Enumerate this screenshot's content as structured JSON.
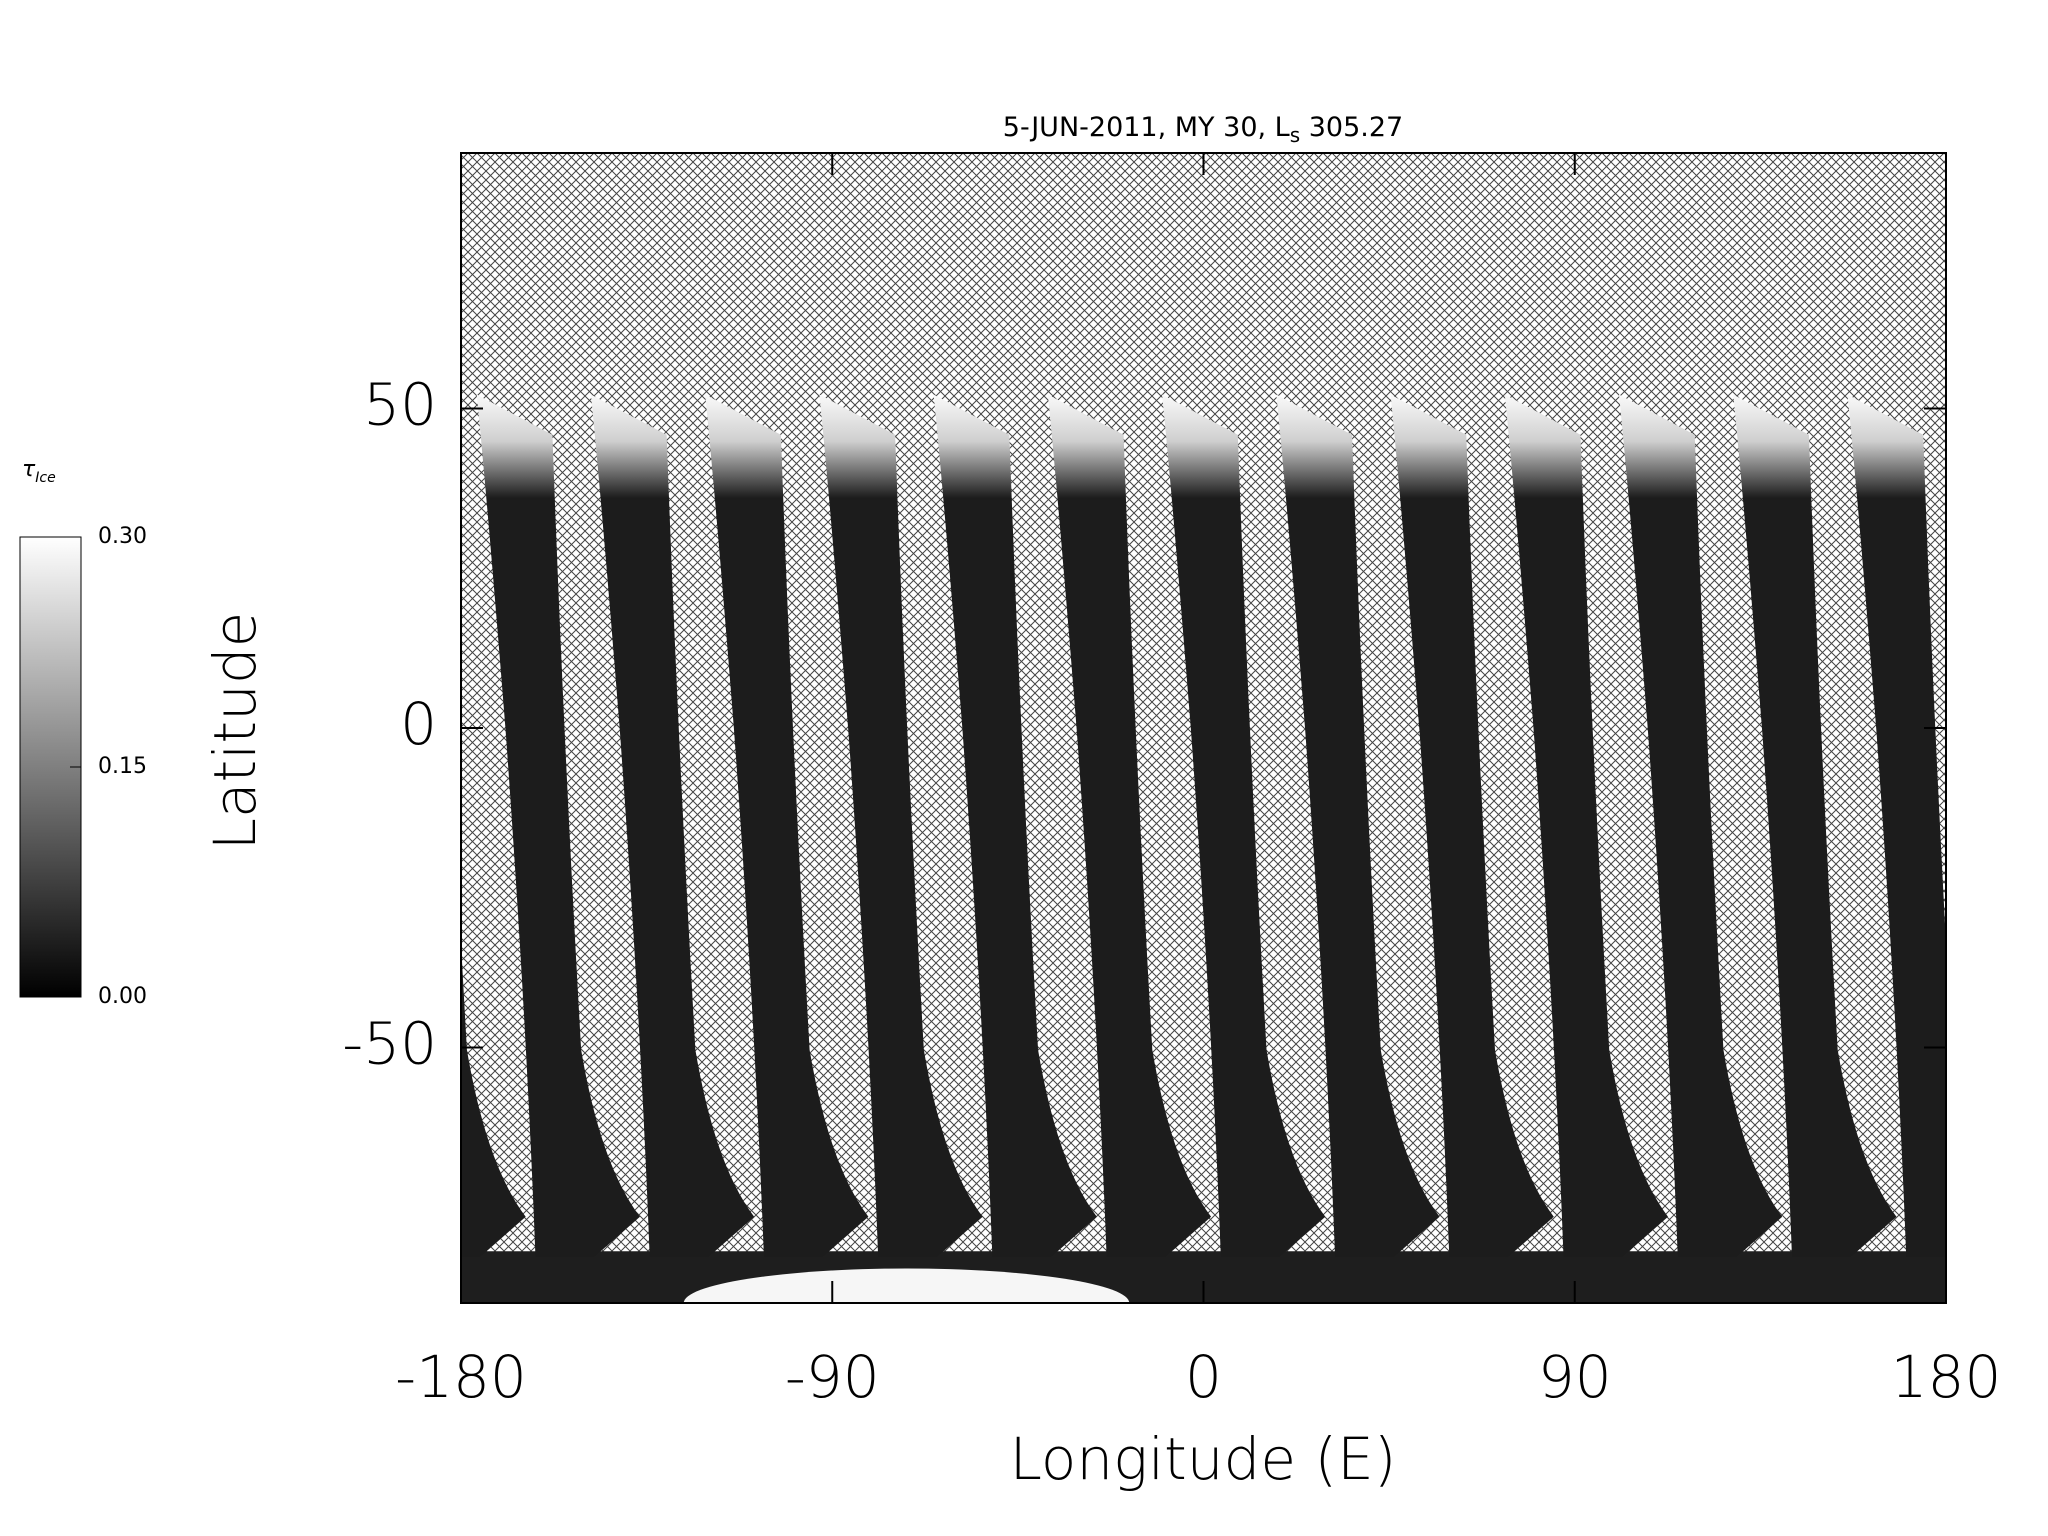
{
  "chart_data": {
    "type": "map",
    "title": "5-JUN-2011, MY 30,  L",
    "title_subscript": "s",
    "title_suffix": " 305.27",
    "x_label": "Longitude (E)",
    "y_label": "Latitude",
    "xlim": [
      -180,
      180
    ],
    "xticks": [
      -180,
      -90,
      0,
      90,
      180
    ],
    "ylim": [
      -90,
      90
    ],
    "yticks": [
      -50,
      0,
      50
    ],
    "colorbar": {
      "label": "τ",
      "label_subscript": "Ice",
      "clim": [
        0,
        0.3
      ],
      "ticks": [
        {
          "value": 0,
          "label": "0.00"
        },
        {
          "value": 0.15,
          "label": "0.15"
        },
        {
          "value": 0.3,
          "label": "0.30"
        }
      ]
    }
  }
}
